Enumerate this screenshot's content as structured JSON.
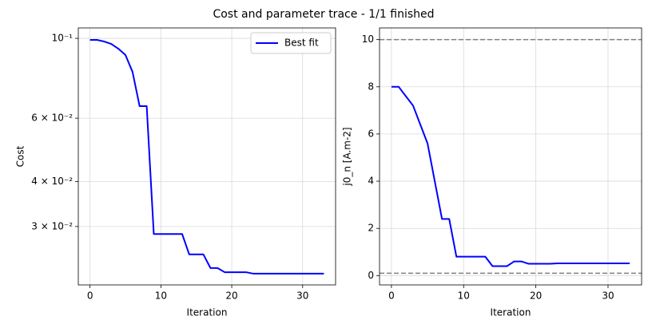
{
  "title": "Cost and parameter trace - 1/1 finished",
  "chart_data": [
    {
      "type": "line",
      "xlabel": "Iteration",
      "ylabel": "Cost",
      "yscale": "log",
      "grid": true,
      "legend": "upper right",
      "x": [
        0,
        1,
        2,
        3,
        4,
        5,
        6,
        7,
        8,
        9,
        10,
        11,
        12,
        13,
        14,
        15,
        16,
        17,
        18,
        19,
        20,
        21,
        22,
        23,
        24,
        25,
        26,
        27,
        28,
        29,
        30,
        31,
        32,
        33
      ],
      "series": [
        {
          "name": "Best fit",
          "color": "#0000ff",
          "values": [
            0.099,
            0.099,
            0.098,
            0.0965,
            0.0936,
            0.0899,
            0.0807,
            0.0648,
            0.0648,
            0.0286,
            0.0286,
            0.0286,
            0.0286,
            0.0286,
            0.0251,
            0.0251,
            0.0251,
            0.023,
            0.023,
            0.0224,
            0.0224,
            0.0224,
            0.0224,
            0.0222,
            0.0222,
            0.0222,
            0.0222,
            0.0222,
            0.0222,
            0.0222,
            0.0222,
            0.0222,
            0.0222,
            0.0222
          ]
        }
      ],
      "xlim": [
        -1.65,
        34.65
      ],
      "xticks": [
        0,
        10,
        20,
        30
      ],
      "ylim": [
        0.02065,
        0.1069
      ],
      "yticks": [
        {
          "value": 0.03,
          "label": "3 × 10⁻²"
        },
        {
          "value": 0.04,
          "label": "4 × 10⁻²"
        },
        {
          "value": 0.06,
          "label": "6 × 10⁻²"
        },
        {
          "value": 0.1,
          "label": "10⁻¹"
        }
      ]
    },
    {
      "type": "line",
      "xlabel": "Iteration",
      "ylabel": "j0_n [A.m-2]",
      "grid": true,
      "color": "#0000ff",
      "x": [
        0,
        1,
        2,
        3,
        4,
        5,
        6,
        7,
        8,
        9,
        10,
        11,
        12,
        13,
        14,
        15,
        16,
        17,
        18,
        19,
        20,
        21,
        22,
        23,
        24,
        25,
        26,
        27,
        28,
        29,
        30,
        31,
        32,
        33
      ],
      "values": [
        8,
        8,
        7.6,
        7.2,
        6.4,
        5.6,
        4,
        2.4,
        2.4,
        0.8,
        0.8,
        0.8,
        0.8,
        0.8,
        0.4,
        0.4,
        0.4,
        0.6,
        0.6,
        0.5,
        0.5,
        0.5,
        0.5,
        0.52,
        0.52,
        0.52,
        0.52,
        0.52,
        0.52,
        0.52,
        0.52,
        0.52,
        0.52,
        0.52
      ],
      "hlines": [
        0.1,
        10
      ],
      "hline_color": "#808080",
      "xlim": [
        -1.65,
        34.65
      ],
      "xticks": [
        0,
        10,
        20,
        30
      ],
      "ylim": [
        -0.395,
        10.495
      ],
      "yticks": [
        0,
        2,
        4,
        6,
        8,
        10
      ]
    }
  ]
}
